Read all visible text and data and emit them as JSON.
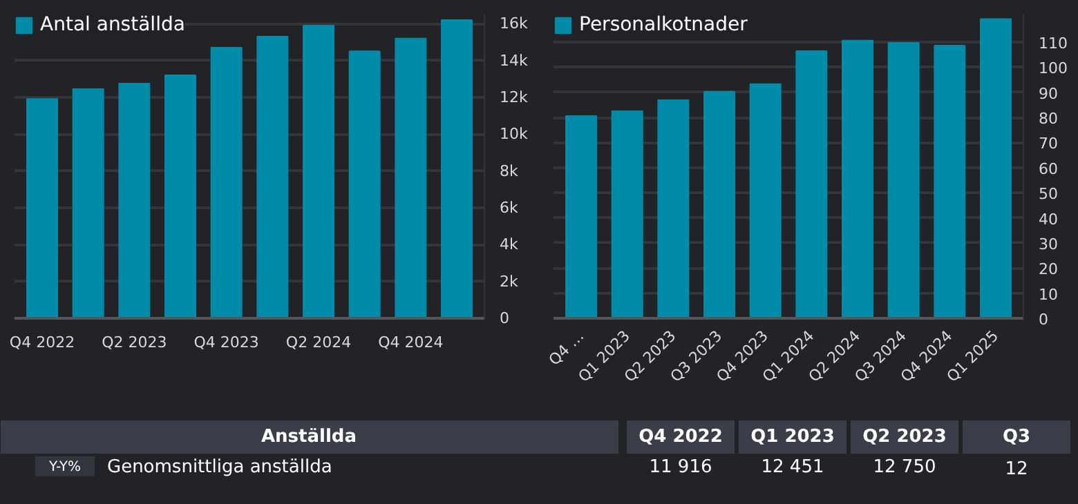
{
  "chart_data": [
    {
      "type": "bar",
      "categories": [
        "Q4 2022",
        null,
        "Q2 2023",
        null,
        "Q4 2023",
        null,
        "Q2 2024",
        null,
        "Q4 2024",
        null
      ],
      "series": [
        {
          "name": "Antal anställda",
          "color": "#008ba8",
          "values": [
            11916,
            12451,
            12750,
            13200,
            14700,
            15300,
            15900,
            14500,
            15200,
            16200
          ]
        }
      ],
      "ylim": [
        0,
        16500
      ],
      "yticks": [
        0,
        {
          "value": 2000,
          "label": "2k"
        },
        {
          "value": 4000,
          "label": "4k"
        },
        {
          "value": 6000,
          "label": "6k"
        },
        {
          "value": 8000,
          "label": "8k"
        },
        {
          "value": 10000,
          "label": "10k"
        },
        {
          "value": 12000,
          "label": "12k"
        },
        {
          "value": 14000,
          "label": "14k"
        },
        {
          "value": 16000,
          "label": "16k"
        }
      ],
      "grid": "y",
      "legend": "top left"
    },
    {
      "type": "bar",
      "categories": [
        "Q4 …",
        "Q1 2023",
        "Q2 2023",
        "Q3 2023",
        "Q4 2023",
        "Q1 2024",
        "Q2 2024",
        "Q3 2024",
        "Q4 2024",
        "Q1 2025"
      ],
      "series": [
        {
          "name": "Personalkotnader",
          "color": "#008ba8",
          "values": [
            80.6,
            82.5,
            86.9,
            90.3,
            93.3,
            106.4,
            110.6,
            109.7,
            108.6,
            119.2
          ]
        }
      ],
      "ylim": [
        0,
        121
      ],
      "yticks": [
        0,
        10,
        20,
        30,
        40,
        50,
        60,
        70,
        80,
        90,
        100,
        110
      ],
      "grid": "y",
      "legend": "top left"
    },
    {
      "type": "other",
      "title": "Anställda",
      "categories": [
        "Q4 2022",
        "Q1 2023",
        "Q2 2023",
        "Q3"
      ],
      "annotations": [
        "Y-Y%",
        "Genomsnittliga anställda",
        "11 916",
        "12 451",
        "12 750",
        "12"
      ]
    }
  ]
}
